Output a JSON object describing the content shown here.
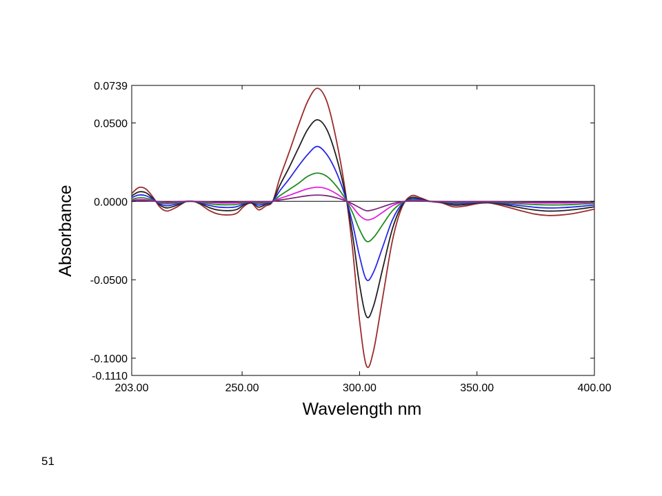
{
  "chart_data": {
    "type": "line",
    "title": "",
    "xlabel": "Wavelength nm",
    "ylabel": "Absorbance",
    "xlim": [
      203.0,
      400.0
    ],
    "ylim": [
      -0.111,
      0.0739
    ],
    "x_ticks": [
      "203.00",
      "250.00",
      "300.00",
      "350.00",
      "400.00"
    ],
    "x_tick_values": [
      203,
      250,
      300,
      350,
      400
    ],
    "y_ticks": [
      "0.0739",
      "0.0500",
      "0.0000",
      "-0.0500",
      "-0.1000",
      "-0.1110"
    ],
    "y_tick_values": [
      0.0739,
      0.05,
      0.0,
      -0.05,
      -0.1,
      -0.111
    ],
    "grid": false,
    "legend": "none",
    "baseline": 0.0,
    "x": [
      203,
      206,
      209,
      212,
      215,
      218,
      222,
      226,
      229,
      232,
      236,
      240,
      245,
      248,
      251,
      254,
      257,
      260,
      263,
      266,
      270,
      274,
      278,
      282,
      286,
      290,
      294,
      297,
      300,
      303,
      306,
      310,
      314,
      318,
      322,
      326,
      330,
      335,
      340,
      345,
      350,
      355,
      360,
      365,
      370,
      375,
      380,
      385,
      390,
      395,
      400
    ],
    "series": [
      {
        "color": "#9b2a2a",
        "values": [
          0.005,
          0.0088,
          0.0079,
          0.0028,
          -0.0036,
          -0.0062,
          -0.0038,
          -0.0003,
          0.0,
          -0.0017,
          -0.0058,
          -0.0082,
          -0.0086,
          -0.0073,
          -0.0029,
          -0.0012,
          -0.0054,
          -0.003,
          0.0,
          0.0146,
          0.0312,
          0.0485,
          0.064,
          0.0721,
          0.064,
          0.04,
          0.006,
          -0.03,
          -0.076,
          -0.105,
          -0.095,
          -0.06,
          -0.025,
          -0.004,
          0.0035,
          0.0022,
          0.0,
          -0.001,
          -0.0035,
          -0.003,
          -0.0015,
          -0.001,
          -0.0025,
          -0.0045,
          -0.0065,
          -0.0082,
          -0.009,
          -0.0088,
          -0.008,
          -0.0066,
          -0.005
        ]
      },
      {
        "color": "#202020",
        "values": [
          0.0035,
          0.006,
          0.0055,
          0.0019,
          -0.0024,
          -0.0042,
          -0.0026,
          -0.0002,
          0.0,
          -0.0012,
          -0.004,
          -0.0056,
          -0.0059,
          -0.005,
          -0.002,
          -0.0008,
          -0.0037,
          -0.002,
          0.0,
          0.01,
          0.0215,
          0.034,
          0.046,
          0.052,
          0.046,
          0.029,
          0.0043,
          -0.021,
          -0.053,
          -0.0735,
          -0.0665,
          -0.042,
          -0.0175,
          -0.0028,
          0.0024,
          0.0015,
          0.0,
          -0.0007,
          -0.0024,
          -0.0021,
          -0.001,
          -0.0007,
          -0.0017,
          -0.0031,
          -0.0045,
          -0.0056,
          -0.0062,
          -0.0061,
          -0.0055,
          -0.0046,
          -0.0035
        ]
      },
      {
        "color": "#2828e6",
        "values": [
          0.0024,
          0.004,
          0.0036,
          0.0013,
          -0.0016,
          -0.0028,
          -0.0017,
          -0.0001,
          0.0,
          -0.0008,
          -0.0026,
          -0.0037,
          -0.0039,
          -0.0033,
          -0.0013,
          -0.0005,
          -0.0024,
          -0.0014,
          0.0,
          0.0066,
          0.0142,
          0.0225,
          0.03,
          0.035,
          0.03,
          0.019,
          0.0028,
          -0.014,
          -0.035,
          -0.05,
          -0.045,
          -0.0285,
          -0.0118,
          -0.0018,
          0.0016,
          0.001,
          0.0,
          -0.0005,
          -0.0016,
          -0.0014,
          -0.0007,
          -0.0005,
          -0.0012,
          -0.0021,
          -0.003,
          -0.0038,
          -0.0042,
          -0.0041,
          -0.0037,
          -0.0031,
          -0.0023
        ]
      },
      {
        "color": "#1e8c1e",
        "values": [
          0.0013,
          0.0022,
          0.002,
          0.0007,
          -0.0009,
          -0.0016,
          -0.001,
          -0.0001,
          0.0,
          -0.0005,
          -0.0015,
          -0.0021,
          -0.0022,
          -0.0019,
          -0.0008,
          -0.0003,
          -0.0014,
          -0.0008,
          0.0,
          0.0035,
          0.0075,
          0.0115,
          0.016,
          0.018,
          0.016,
          0.01,
          0.0015,
          -0.0072,
          -0.018,
          -0.0255,
          -0.023,
          -0.0145,
          -0.006,
          -0.001,
          0.0009,
          0.0005,
          0.0,
          -0.0003,
          -0.0009,
          -0.0008,
          -0.0004,
          -0.0003,
          -0.0007,
          -0.0012,
          -0.0017,
          -0.0021,
          -0.0023,
          -0.0023,
          -0.0021,
          -0.0017,
          -0.0013
        ]
      },
      {
        "color": "#e01ee0",
        "values": [
          0.0006,
          0.0011,
          0.001,
          0.0004,
          -0.0005,
          -0.0008,
          -0.0005,
          0.0,
          0.0,
          -0.0002,
          -0.0007,
          -0.001,
          -0.0011,
          -0.0009,
          -0.0004,
          -0.0002,
          -0.0007,
          -0.0004,
          0.0,
          0.0018,
          0.0038,
          0.006,
          0.008,
          0.009,
          0.008,
          0.005,
          0.0008,
          -0.0035,
          -0.009,
          -0.0118,
          -0.0108,
          -0.0068,
          -0.0028,
          -0.0005,
          0.0004,
          0.0003,
          0.0,
          -0.0001,
          -0.0004,
          -0.0004,
          -0.0002,
          -0.0001,
          -0.0003,
          -0.0006,
          -0.0008,
          -0.001,
          -0.0011,
          -0.0011,
          -0.001,
          -0.0008,
          -0.0006
        ]
      },
      {
        "color": "#7a2a7a",
        "values": [
          0.0003,
          0.0005,
          0.0005,
          0.0002,
          -0.0002,
          -0.0004,
          -0.0002,
          0.0,
          0.0,
          -0.0001,
          -0.0003,
          -0.0005,
          -0.0005,
          -0.0004,
          -0.0002,
          -0.0001,
          -0.0003,
          -0.0002,
          0.0,
          0.0008,
          0.0017,
          0.0027,
          0.0036,
          0.004,
          0.0036,
          0.0023,
          0.0004,
          -0.0016,
          -0.004,
          -0.006,
          -0.0053,
          -0.0034,
          -0.0014,
          -0.0002,
          0.0002,
          0.0001,
          0.0,
          -0.0001,
          -0.0002,
          -0.0002,
          -0.0001,
          -0.0001,
          -0.0002,
          -0.0003,
          -0.0004,
          -0.0005,
          -0.0005,
          -0.0005,
          -0.0005,
          -0.0004,
          -0.0003
        ]
      }
    ]
  },
  "footer": {
    "page_number": "51"
  }
}
